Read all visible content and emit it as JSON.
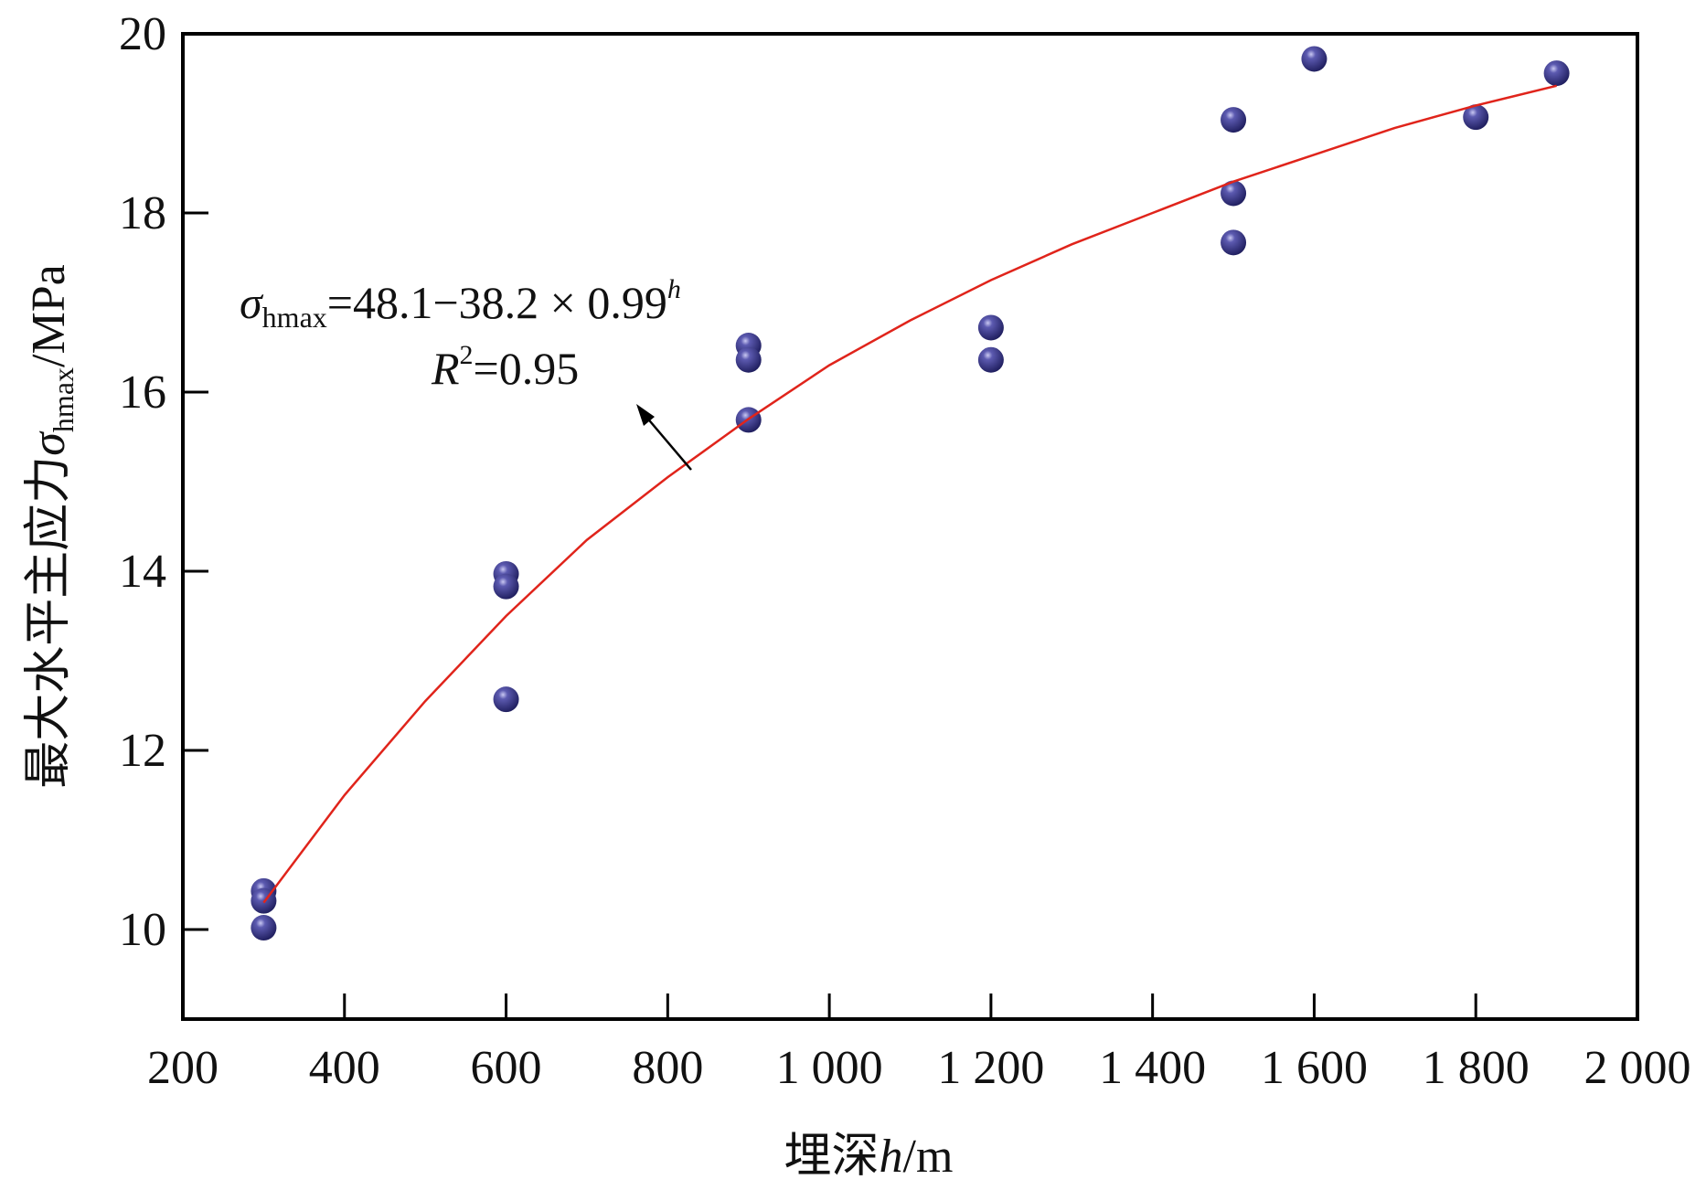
{
  "chart_data": {
    "type": "scatter",
    "title": "",
    "xlabel": "埋深h/m",
    "xlabel_parts": {
      "prefix": "埋深",
      "var": "h",
      "suffix": "/m"
    },
    "ylabel": "最大水平主应力σhmax/MPa",
    "ylabel_parts": {
      "prefix": "最大水平主应力",
      "sym": "σ",
      "sub": "hmax",
      "suffix": "/MPa"
    },
    "xlim": [
      200,
      2000
    ],
    "ylim": [
      9,
      20
    ],
    "xticks": [
      200,
      400,
      600,
      800,
      1000,
      1200,
      1400,
      1600,
      1800,
      2000
    ],
    "xtick_labels": [
      "200",
      "400",
      "600",
      "800",
      "1 000",
      "1 200",
      "1 400",
      "1 600",
      "1 800",
      "2 000"
    ],
    "yticks": [
      10,
      12,
      14,
      16,
      18,
      20
    ],
    "ytick_labels": [
      "10",
      "12",
      "14",
      "16",
      "18",
      "20"
    ],
    "grid": false,
    "colors": {
      "points": "#3b3a8c",
      "fit": "#e0241b",
      "axis": "#000000"
    },
    "series": [
      {
        "name": "measured",
        "type": "scatter",
        "x": [
          300,
          300,
          300,
          600,
          600,
          600,
          900,
          900,
          900,
          1200,
          1200,
          1500,
          1500,
          1500,
          1600,
          1800,
          1900
        ],
        "y": [
          10.43,
          10.32,
          10.02,
          13.97,
          13.83,
          12.57,
          16.52,
          16.36,
          15.69,
          16.72,
          16.36,
          19.04,
          18.22,
          17.67,
          19.72,
          19.07,
          19.56
        ]
      },
      {
        "name": "fit",
        "type": "line",
        "x": [
          300,
          400,
          500,
          600,
          700,
          800,
          900,
          1000,
          1100,
          1200,
          1300,
          1400,
          1500,
          1600,
          1700,
          1800,
          1900
        ],
        "y": [
          10.3,
          11.5,
          12.55,
          13.5,
          14.35,
          15.05,
          15.7,
          16.3,
          16.8,
          17.25,
          17.65,
          18.0,
          18.35,
          18.65,
          18.95,
          19.2,
          19.42
        ]
      }
    ],
    "annotation": {
      "equation_sym": "σ",
      "equation_sub": "hmax",
      "equation_body": "=48.1−38.2 × 0.99",
      "equation_exp": "h",
      "r2_var": "R",
      "r2_exp": "2",
      "r2_body": "=0.95"
    }
  }
}
